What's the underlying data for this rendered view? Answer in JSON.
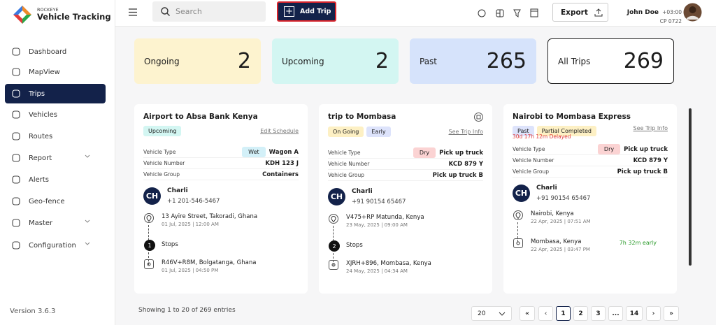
{
  "brand": {
    "small": "ROCKEYE",
    "name": "Vehicle Tracking"
  },
  "search_placeholder": "Search",
  "add_trip": "Add Trip",
  "export": "Export",
  "user": {
    "name": "John Doe",
    "tz": "+03:00",
    "code": "CP 0722"
  },
  "nav": [
    {
      "label": "Dashboard"
    },
    {
      "label": "MapView"
    },
    {
      "label": "Trips",
      "active": true
    },
    {
      "label": "Vehicles"
    },
    {
      "label": "Routes"
    },
    {
      "label": "Report",
      "expand": true
    },
    {
      "label": "Alerts"
    },
    {
      "label": "Geo-fence"
    },
    {
      "label": "Master",
      "expand": true
    },
    {
      "label": "Configuration",
      "expand": true
    }
  ],
  "version": "Version 3.6.3",
  "stats": [
    {
      "label": "Ongoing",
      "value": 2,
      "color": "#fdf3cf"
    },
    {
      "label": "Upcoming",
      "value": 2,
      "color": "#d3f6f2"
    },
    {
      "label": "Past",
      "value": 265,
      "color": "#d6e3fb"
    },
    {
      "label": "All Trips",
      "value": 269,
      "color": "#ffffff"
    }
  ],
  "field_labels": [
    "Vehicle Type",
    "Vehicle Number",
    "Vehicle Group"
  ],
  "stops_label": "Stops",
  "cards": [
    {
      "title": "Airport to Absa Bank Kenya",
      "badges": [
        "Upcoming"
      ],
      "link": "Edit Schedule",
      "type_tag": "Wet",
      "vehicle_type": "Wagon A",
      "vehicle_number": "KDH 123 J",
      "vehicle_group": "Containers",
      "driver": {
        "initials": "CH",
        "name": "Charli",
        "phone": "+1 201-546-5467"
      },
      "origin": {
        "place": "13 Ayire Street, Takoradi, Ghana",
        "time": "01 Jul, 2025 | 12:00 AM"
      },
      "stops": "1",
      "destination": {
        "place": "R46V+R8M, Bolgatanga, Ghana",
        "time": "01 Jul, 2025 | 04:50 PM"
      }
    },
    {
      "title": "trip to Mombasa",
      "badges": [
        "On Going",
        "Early"
      ],
      "link": "See Trip Info",
      "type_tag": "Dry",
      "vehicle_type": "Pick up truck",
      "vehicle_number": "KCD 879 Y",
      "vehicle_group": "Pick up truck B",
      "driver": {
        "initials": "CH",
        "name": "Charli",
        "phone": "+91 90154 65467"
      },
      "origin": {
        "place": "V475+RP Matunda, Kenya",
        "time": "23 May, 2025 | 09:00 AM"
      },
      "stops": "2",
      "destination": {
        "place": "XJRH+896, Mombasa, Kenya",
        "time": "24 May, 2025 | 04:34 AM"
      }
    },
    {
      "title": "Nairobi to Mombasa Express",
      "badges": [
        "Past",
        "Partial Completed"
      ],
      "delay": "30d 17h 12m Delayed",
      "link": "See Trip Info",
      "type_tag": "Dry",
      "vehicle_type": "Pick up truck",
      "vehicle_number": "KCD 879 Y",
      "vehicle_group": "Pick up truck B",
      "driver": {
        "initials": "CH",
        "name": "Charli",
        "phone": "+91 90154 65467"
      },
      "origin": {
        "place": "Nairobi, Kenya",
        "time": "22 Apr, 2025 | 07:51 AM"
      },
      "destination": {
        "place": "Mombasa, Kenya",
        "time": "22 Apr, 2025 | 03:47 PM",
        "note": "7h 32m early"
      }
    }
  ],
  "footer": {
    "entries": "Showing 1 to 20 of 269 entries",
    "page_size": "20",
    "first": "«",
    "prev": "‹",
    "pages": [
      "1",
      "2",
      "3",
      "...",
      "14"
    ],
    "next": "›",
    "last": "»"
  }
}
